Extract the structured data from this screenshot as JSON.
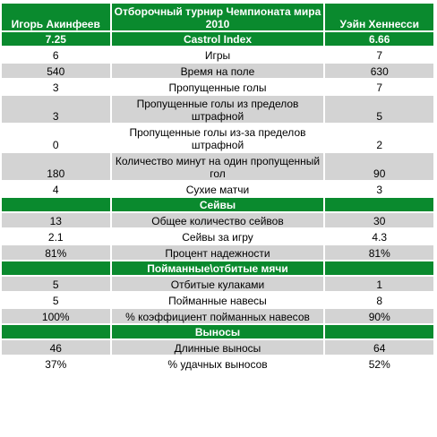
{
  "header": {
    "left": "Игорь Акинфеев",
    "middle": "Отборочный турнир Чемпионата мира 2010",
    "right": "Уэйн Хеннесси"
  },
  "rows": [
    {
      "type": "section",
      "left": "7.25",
      "middle": "Castrol Index",
      "right": "6.66"
    },
    {
      "type": "row",
      "left": "6",
      "middle": "Игры",
      "right": "7"
    },
    {
      "type": "row",
      "left": "540",
      "middle": "Время на поле",
      "right": "630"
    },
    {
      "type": "row",
      "left": "3",
      "middle": "Пропущенные голы",
      "right": "7"
    },
    {
      "type": "row",
      "left": "3",
      "middle": "Пропущенные голы из пределов штрафной",
      "right": "5"
    },
    {
      "type": "row",
      "left": "0",
      "middle": "Пропущенные голы из-за пределов штрафной",
      "right": "2"
    },
    {
      "type": "row",
      "left": "180",
      "middle": "Количество минут на один пропущенный гол",
      "right": "90"
    },
    {
      "type": "row",
      "left": "4",
      "middle": "Сухие матчи",
      "right": "3"
    },
    {
      "type": "section",
      "left": "",
      "middle": "Сейвы",
      "right": ""
    },
    {
      "type": "row",
      "left": "13",
      "middle": "Общее количество сейвов",
      "right": "30"
    },
    {
      "type": "row",
      "left": "2.1",
      "middle": "Сейвы за игру",
      "right": "4.3"
    },
    {
      "type": "row",
      "left": "81%",
      "middle": "Процент надежности",
      "right": "81%"
    },
    {
      "type": "section",
      "left": "",
      "middle": "Пойманные\\отбитые мячи",
      "right": ""
    },
    {
      "type": "row",
      "left": "5",
      "middle": "Отбитые кулаками",
      "right": "1"
    },
    {
      "type": "row",
      "left": "5",
      "middle": "Пойманные навесы",
      "right": "8"
    },
    {
      "type": "row",
      "left": "100%",
      "middle": "% коэффициент пойманных навесов",
      "right": "90%"
    },
    {
      "type": "section",
      "left": "",
      "middle": "Выносы",
      "right": ""
    },
    {
      "type": "row",
      "left": "46",
      "middle": "Длинные выносы",
      "right": "64"
    },
    {
      "type": "row",
      "left": "37%",
      "middle": "% удачных  выносов",
      "right": "52%"
    }
  ]
}
